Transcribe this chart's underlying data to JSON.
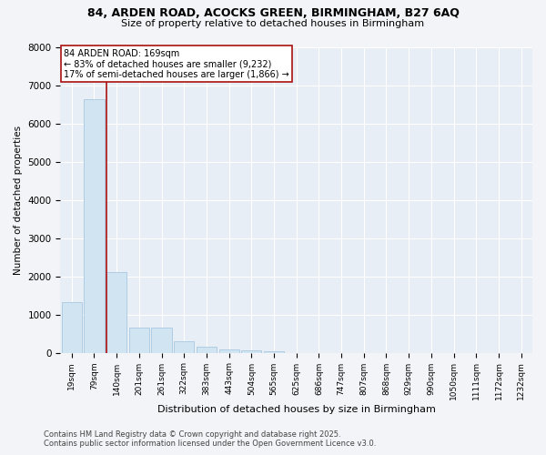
{
  "title_line1": "84, ARDEN ROAD, ACOCKS GREEN, BIRMINGHAM, B27 6AQ",
  "title_line2": "Size of property relative to detached houses in Birmingham",
  "xlabel": "Distribution of detached houses by size in Birmingham",
  "ylabel": "Number of detached properties",
  "categories": [
    "19sqm",
    "79sqm",
    "140sqm",
    "201sqm",
    "261sqm",
    "322sqm",
    "383sqm",
    "443sqm",
    "504sqm",
    "565sqm",
    "625sqm",
    "686sqm",
    "747sqm",
    "807sqm",
    "868sqm",
    "929sqm",
    "990sqm",
    "1050sqm",
    "1111sqm",
    "1172sqm",
    "1232sqm"
  ],
  "values": [
    1320,
    6630,
    2100,
    650,
    650,
    290,
    150,
    90,
    60,
    35,
    0,
    0,
    0,
    0,
    0,
    0,
    0,
    0,
    0,
    0,
    0
  ],
  "bar_color": "#d0e4f2",
  "bar_edge_color": "#a8c8e0",
  "vline_x_index": 2,
  "vline_color": "#aa1111",
  "annotation_text": "84 ARDEN ROAD: 169sqm\n← 83% of detached houses are smaller (9,232)\n17% of semi-detached houses are larger (1,866) →",
  "annotation_box_edge_color": "#aa1111",
  "ylim": [
    0,
    8000
  ],
  "yticks": [
    0,
    1000,
    2000,
    3000,
    4000,
    5000,
    6000,
    7000,
    8000
  ],
  "plot_bg_color": "#e8eef5",
  "fig_bg_color": "#f2f4f7",
  "grid_color": "#ffffff",
  "footer_line1": "Contains HM Land Registry data © Crown copyright and database right 2025.",
  "footer_line2": "Contains public sector information licensed under the Open Government Licence v3.0."
}
